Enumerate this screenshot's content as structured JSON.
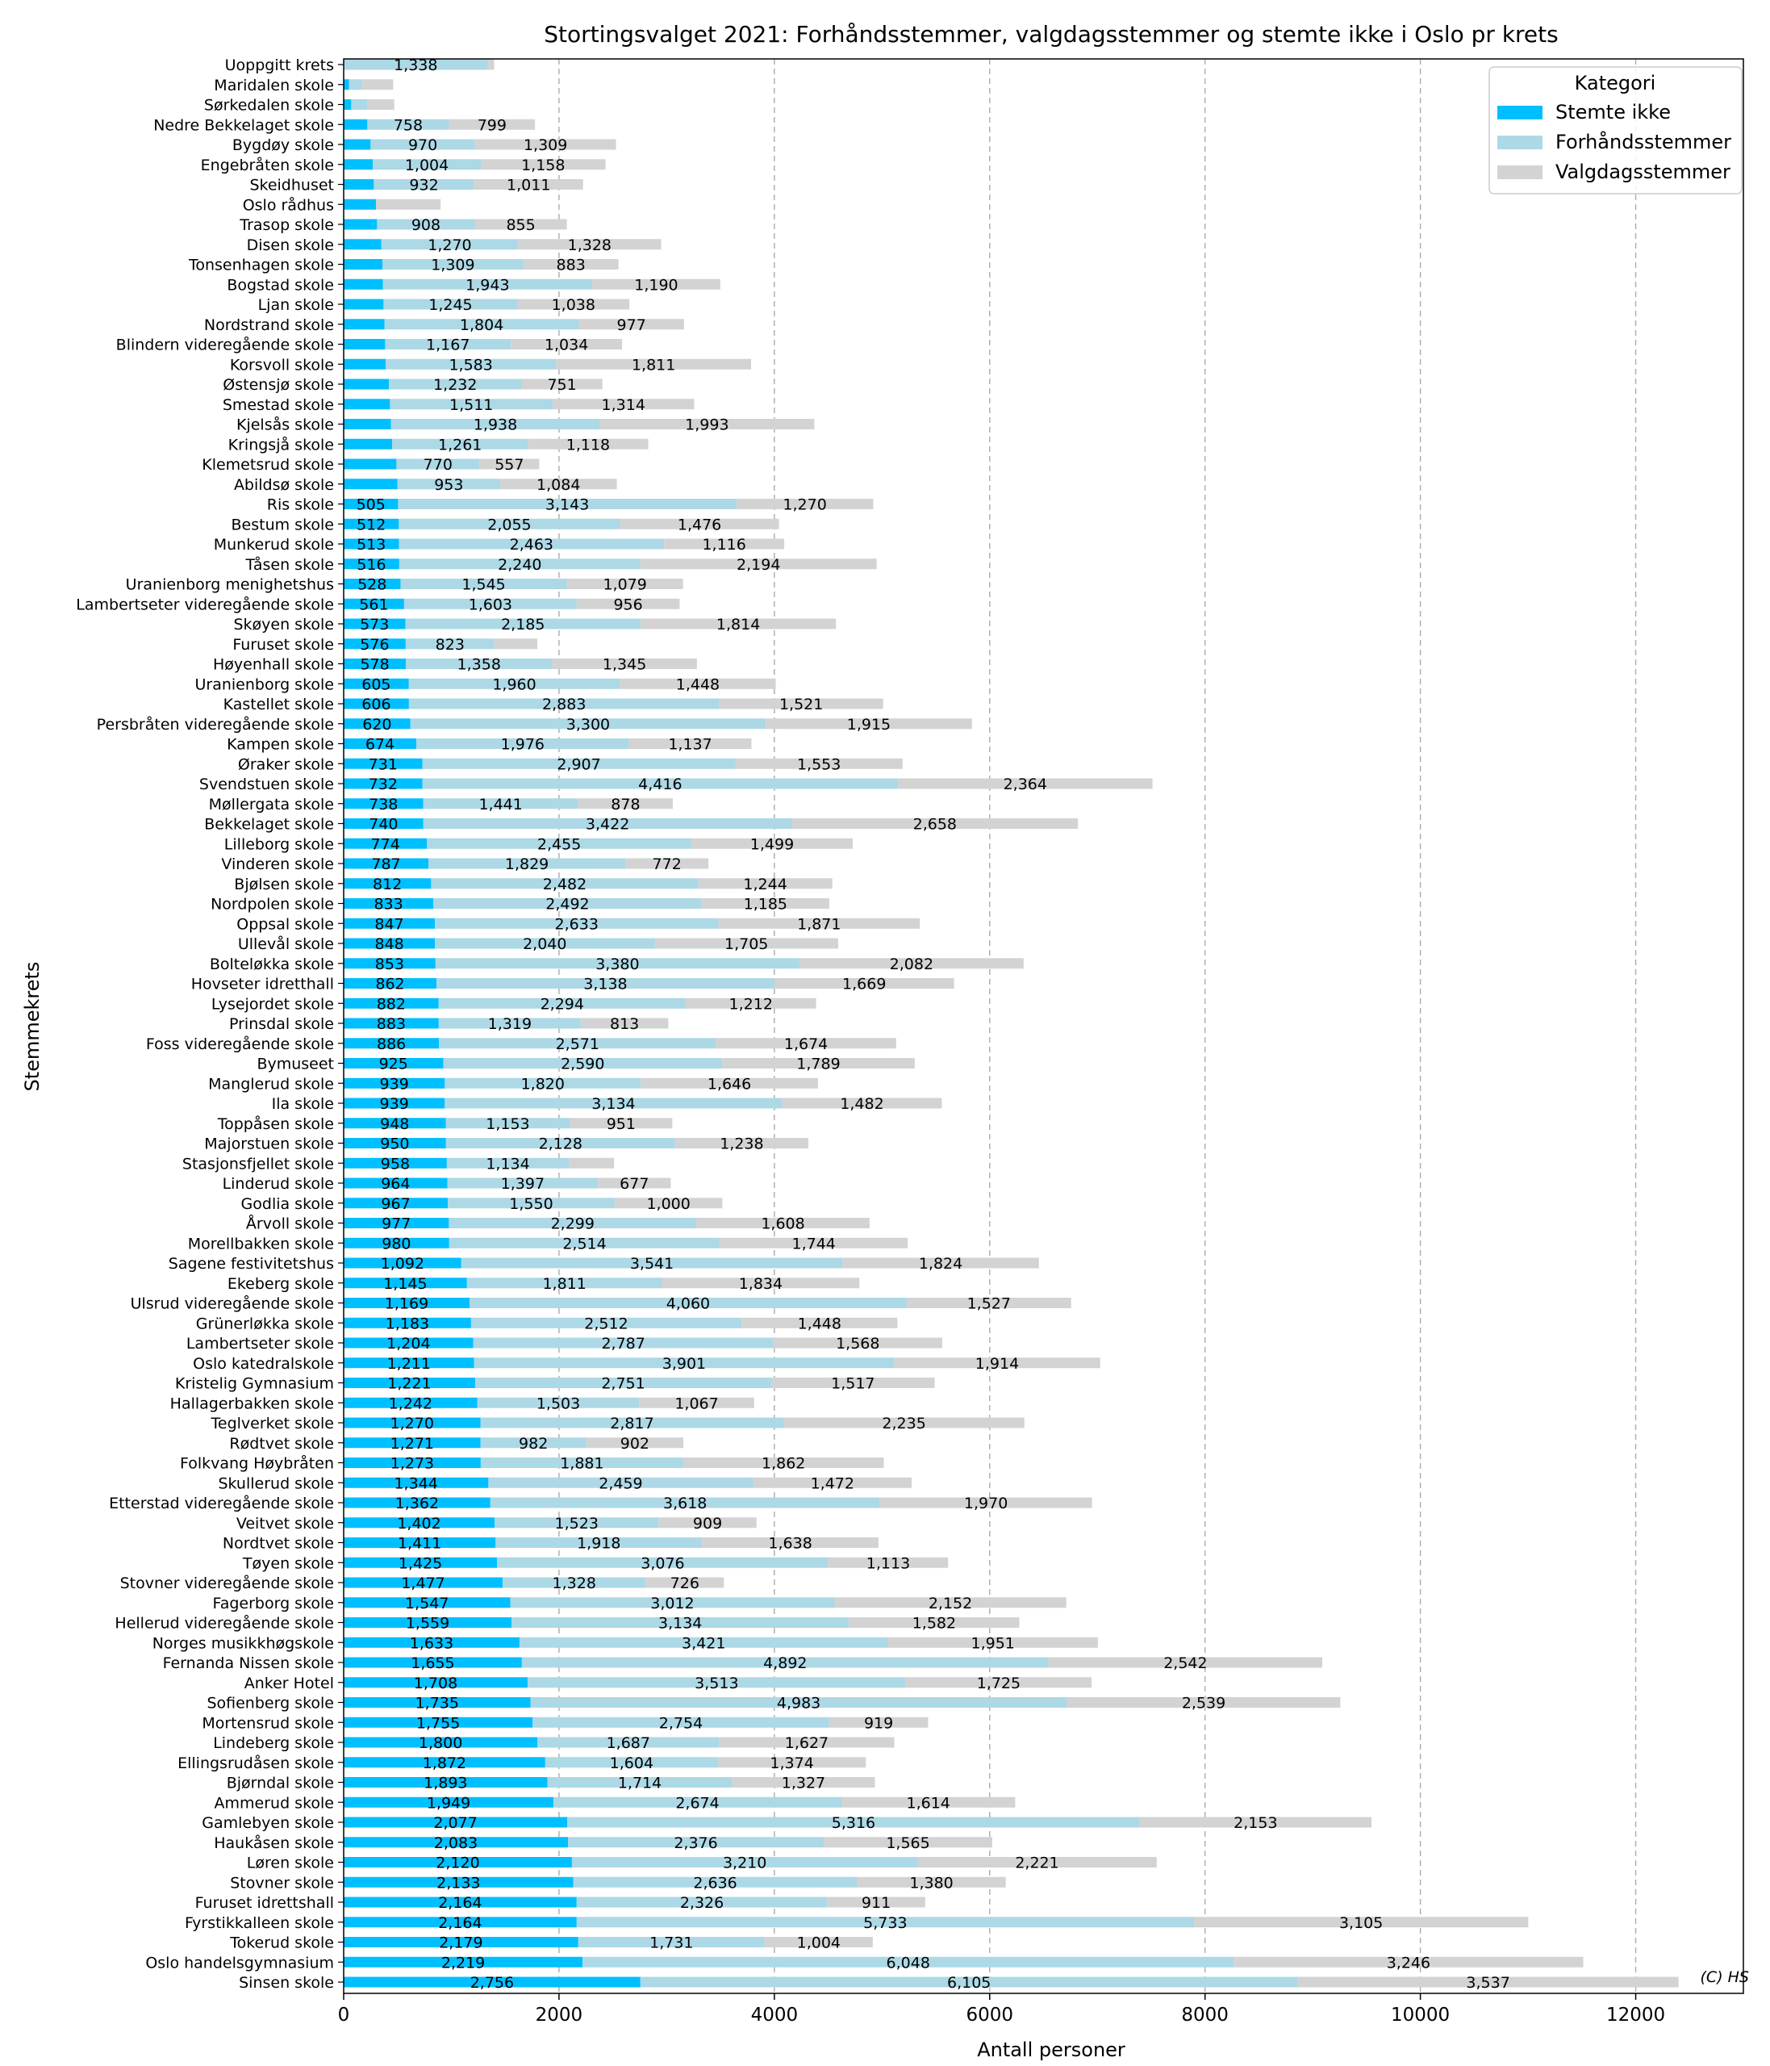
{
  "chart_data": {
    "type": "bar",
    "orientation": "horizontal",
    "stacked": true,
    "title": "Stortingsvalget 2021: Forhåndsstemmer, valgdagsstemmer og stemte ikke i Oslo pr krets",
    "xlabel": "Antall personer",
    "ylabel": "Stemmekrets",
    "xlim": [
      0,
      13000
    ],
    "xticks": [
      0,
      2000,
      4000,
      6000,
      8000,
      10000,
      12000
    ],
    "grid": "vertical dashed",
    "legend": {
      "title": "Kategori",
      "placement": "top-right"
    },
    "credit": "(C) HS",
    "categories": [
      "Uoppgitt krets",
      "Maridalen skole",
      "Sørkedalen skole",
      "Nedre Bekkelaget skole",
      "Bygdøy skole",
      "Engebråten skole",
      "Skeidhuset",
      "Oslo rådhus",
      "Trasop skole",
      "Disen skole",
      "Tonsenhagen skole",
      "Bogstad skole",
      "Ljan skole",
      "Nordstrand skole",
      "Blindern videregående skole",
      "Korsvoll skole",
      "Østensjø skole",
      "Smestad skole",
      "Kjelsås skole",
      "Kringsjå skole",
      "Klemetsrud skole",
      "Abildsø skole",
      "Ris skole",
      "Bestum skole",
      "Munkerud skole",
      "Tåsen skole",
      "Uranienborg menighetshus",
      "Lambertseter videregående skole",
      "Skøyen skole",
      "Furuset skole",
      "Høyenhall skole",
      "Uranienborg skole",
      "Kastellet skole",
      "Persbråten videregående skole",
      "Kampen skole",
      "Øraker skole",
      "Svendstuen skole",
      "Møllergata skole",
      "Bekkelaget skole",
      "Lilleborg skole",
      "Vinderen skole",
      "Bjølsen skole",
      "Nordpolen skole",
      "Oppsal skole",
      "Ullevål skole",
      "Bolteløkka skole",
      "Hovseter idretthall",
      "Lysejordet skole",
      "Prinsdal skole",
      "Foss videregående skole",
      "Bymuseet",
      "Manglerud skole",
      "Ila skole",
      "Toppåsen skole",
      "Majorstuen skole",
      "Stasjonsfjellet skole",
      "Linderud skole",
      "Godlia skole",
      "Årvoll skole",
      "Morellbakken skole",
      "Sagene festivitetshus",
      "Ekeberg skole",
      "Ulsrud videregående skole",
      "Grünerløkka skole",
      "Lambertseter skole",
      "Oslo katedralskole",
      "Kristelig Gymnasium",
      "Hallagerbakken skole",
      "Teglverket skole",
      "Rødtvet skole",
      "Folkvang Høybråten",
      "Skullerud skole",
      "Etterstad videregående skole",
      "Veitvet skole",
      "Nordtvet skole",
      "Tøyen skole",
      "Stovner videregående skole",
      "Fagerborg skole",
      "Hellerud videregående skole",
      "Norges musikkhøgskole",
      "Fernanda Nissen skole",
      "Anker Hotel",
      "Sofienberg skole",
      "Mortensrud skole",
      "Lindeberg skole",
      "Ellingsrudåsen skole",
      "Bjørndal skole",
      "Ammerud skole",
      "Gamlebyen skole",
      "Haukåsen skole",
      "Løren skole",
      "Stovner skole",
      "Furuset idrettshall",
      "Fyrstikkalleen skole",
      "Tokerud skole",
      "Oslo handelsgymnasium",
      "Sinsen skole"
    ],
    "series": [
      {
        "name": "Stemte ikke",
        "color": "#00BFFF",
        "values": [
          0,
          50,
          70,
          220,
          250,
          270,
          280,
          300,
          310,
          350,
          360,
          365,
          370,
          380,
          385,
          390,
          420,
          430,
          440,
          450,
          490,
          500,
          505,
          512,
          513,
          516,
          528,
          561,
          573,
          576,
          578,
          605,
          606,
          620,
          674,
          731,
          732,
          738,
          740,
          774,
          787,
          812,
          833,
          847,
          848,
          853,
          862,
          882,
          883,
          886,
          925,
          939,
          939,
          948,
          950,
          958,
          964,
          967,
          977,
          980,
          1092,
          1145,
          1169,
          1183,
          1204,
          1211,
          1221,
          1242,
          1270,
          1271,
          1273,
          1344,
          1362,
          1402,
          1411,
          1425,
          1477,
          1547,
          1559,
          1633,
          1655,
          1708,
          1735,
          1755,
          1800,
          1872,
          1893,
          1949,
          2077,
          2083,
          2120,
          2133,
          2164,
          2164,
          2179,
          2219,
          2756
        ],
        "labels": [
          "",
          "",
          "",
          "",
          "",
          "",
          "",
          "",
          "",
          "",
          "",
          "",
          "",
          "",
          "",
          "",
          "",
          "",
          "",
          "",
          "",
          "",
          "505",
          "512",
          "513",
          "516",
          "528",
          "561",
          "573",
          "576",
          "578",
          "605",
          "606",
          "620",
          "674",
          "731",
          "732",
          "738",
          "740",
          "774",
          "787",
          "812",
          "833",
          "847",
          "848",
          "853",
          "862",
          "882",
          "883",
          "886",
          "925",
          "939",
          "939",
          "948",
          "950",
          "958",
          "964",
          "967",
          "977",
          "980",
          "1,092",
          "1,145",
          "1,169",
          "1,183",
          "1,204",
          "1,211",
          "1,221",
          "1,242",
          "1,270",
          "1,271",
          "1,273",
          "1,344",
          "1,362",
          "1,402",
          "1,411",
          "1,425",
          "1,477",
          "1,547",
          "1,559",
          "1,633",
          "1,655",
          "1,708",
          "1,735",
          "1,755",
          "1,800",
          "1,872",
          "1,893",
          "1,949",
          "2,077",
          "2,083",
          "2,120",
          "2,133",
          "2,164",
          "2,164",
          "2,179",
          "2,219",
          "2,756"
        ]
      },
      {
        "name": "Forhåndsstemmer",
        "color": "#ADD8E6",
        "values": [
          1338,
          120,
          150,
          758,
          970,
          1004,
          932,
          0,
          908,
          1270,
          1309,
          1943,
          1245,
          1804,
          1167,
          1583,
          1232,
          1511,
          1938,
          1261,
          770,
          953,
          3143,
          2055,
          2463,
          2240,
          1545,
          1603,
          2185,
          823,
          1358,
          1960,
          2883,
          3300,
          1976,
          2907,
          4416,
          1441,
          3422,
          2455,
          1829,
          2482,
          2492,
          2633,
          2040,
          3380,
          3138,
          2294,
          1319,
          2571,
          2590,
          1820,
          3134,
          1153,
          2128,
          1134,
          1397,
          1550,
          2299,
          2514,
          3541,
          1811,
          4060,
          2512,
          2787,
          3901,
          2751,
          1503,
          2817,
          982,
          1881,
          2459,
          3618,
          1523,
          1918,
          3076,
          1328,
          3012,
          3134,
          3421,
          4892,
          3513,
          4983,
          2754,
          1687,
          1604,
          1714,
          2674,
          5316,
          2376,
          3210,
          2636,
          2326,
          5733,
          1731,
          6048,
          6105
        ],
        "labels": [
          "1,338",
          "",
          "",
          "758",
          "970",
          "1,004",
          "932",
          "",
          "908",
          "1,270",
          "1,309",
          "1,943",
          "1,245",
          "1,804",
          "1,167",
          "1,583",
          "1,232",
          "1,511",
          "1,938",
          "1,261",
          "770",
          "953",
          "3,143",
          "2,055",
          "2,463",
          "2,240",
          "1,545",
          "1,603",
          "2,185",
          "823",
          "1,358",
          "1,960",
          "2,883",
          "3,300",
          "1,976",
          "2,907",
          "4,416",
          "1,441",
          "3,422",
          "2,455",
          "1,829",
          "2,482",
          "2,492",
          "2,633",
          "2,040",
          "3,380",
          "3,138",
          "2,294",
          "1,319",
          "2,571",
          "2,590",
          "1,820",
          "3,134",
          "1,153",
          "2,128",
          "1,134",
          "1,397",
          "1,550",
          "2,299",
          "2,514",
          "3,541",
          "1,811",
          "4,060",
          "2,512",
          "2,787",
          "3,901",
          "2,751",
          "1,503",
          "2,817",
          "982",
          "1,881",
          "2,459",
          "3,618",
          "1,523",
          "1,918",
          "3,076",
          "1,328",
          "3,012",
          "3,134",
          "3,421",
          "4,892",
          "3,513",
          "4,983",
          "2,754",
          "1,687",
          "1,604",
          "1,714",
          "2,674",
          "5,316",
          "2,376",
          "3,210",
          "2,636",
          "2,326",
          "5,733",
          "1,731",
          "6,048",
          "6,105"
        ]
      },
      {
        "name": "Valgdagsstemmer",
        "color": "#D3D3D3",
        "values": [
          60,
          290,
          250,
          799,
          1309,
          1158,
          1011,
          600,
          855,
          1328,
          883,
          1190,
          1038,
          977,
          1034,
          1811,
          751,
          1314,
          1993,
          1118,
          557,
          1084,
          1270,
          1476,
          1116,
          2194,
          1079,
          956,
          1814,
          400,
          1345,
          1448,
          1521,
          1915,
          1137,
          1553,
          2364,
          878,
          2658,
          1499,
          772,
          1244,
          1185,
          1871,
          1705,
          2082,
          1669,
          1212,
          813,
          1674,
          1789,
          1646,
          1482,
          951,
          1238,
          420,
          677,
          1000,
          1608,
          1744,
          1824,
          1834,
          1527,
          1448,
          1568,
          1914,
          1517,
          1067,
          2235,
          902,
          1862,
          1472,
          1970,
          909,
          1638,
          1113,
          726,
          2152,
          1582,
          1951,
          2542,
          1725,
          2539,
          919,
          1627,
          1374,
          1327,
          1614,
          2153,
          1565,
          2221,
          1380,
          911,
          3105,
          1004,
          3246,
          3537
        ],
        "labels": [
          "",
          "",
          "",
          "799",
          "1,309",
          "1,158",
          "1,011",
          "",
          "855",
          "1,328",
          "883",
          "1,190",
          "1,038",
          "977",
          "1,034",
          "1,811",
          "751",
          "1,314",
          "1,993",
          "1,118",
          "557",
          "1,084",
          "1,270",
          "1,476",
          "1,116",
          "2,194",
          "1,079",
          "956",
          "1,814",
          "",
          "1,345",
          "1,448",
          "1,521",
          "1,915",
          "1,137",
          "1,553",
          "2,364",
          "878",
          "2,658",
          "1,499",
          "772",
          "1,244",
          "1,185",
          "1,871",
          "1,705",
          "2,082",
          "1,669",
          "1,212",
          "813",
          "1,674",
          "1,789",
          "1,646",
          "1,482",
          "951",
          "1,238",
          "",
          "677",
          "1,000",
          "1,608",
          "1,744",
          "1,824",
          "1,834",
          "1,527",
          "1,448",
          "1,568",
          "1,914",
          "1,517",
          "1,067",
          "2,235",
          "902",
          "1,862",
          "1,472",
          "1,970",
          "909",
          "1,638",
          "1,113",
          "726",
          "2,152",
          "1,582",
          "1,951",
          "2,542",
          "1,725",
          "2,539",
          "919",
          "1,627",
          "1,374",
          "1,327",
          "1,614",
          "2,153",
          "1,565",
          "2,221",
          "1,380",
          "911",
          "3,105",
          "1,004",
          "3,246",
          "3,537"
        ]
      }
    ]
  }
}
